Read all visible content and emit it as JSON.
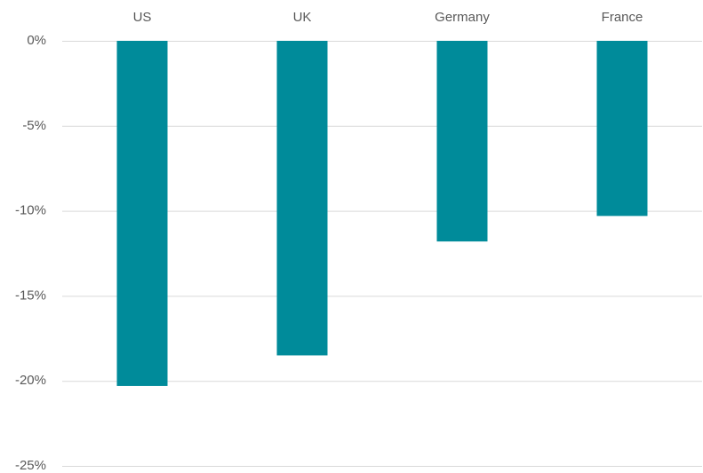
{
  "chart_data": {
    "type": "bar",
    "categories": [
      "US",
      "UK",
      "Germany",
      "France"
    ],
    "values": [
      -20.3,
      -18.5,
      -11.8,
      -10.3
    ],
    "color": "#008b9a",
    "ylim": [
      -25,
      0
    ],
    "yticks": [
      {
        "value": 0,
        "label": "0%"
      },
      {
        "value": -5,
        "label": "-5%"
      },
      {
        "value": -10,
        "label": "-10%"
      },
      {
        "value": -15,
        "label": "-15%"
      },
      {
        "value": -20,
        "label": "-20%"
      },
      {
        "value": -25,
        "label": "-25%"
      }
    ],
    "grid": true
  }
}
